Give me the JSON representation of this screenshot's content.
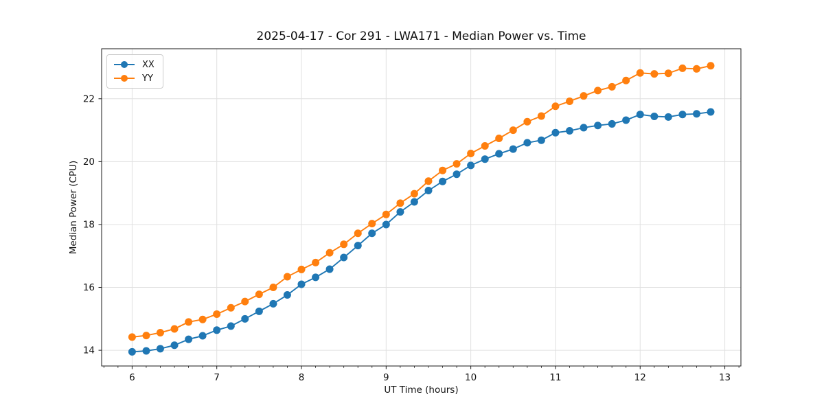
{
  "chart_data": {
    "type": "line",
    "title": "2025-04-17 - Cor 291 - LWA171 - Median Power vs. Time",
    "xlabel": "UT Time (hours)",
    "ylabel": "Median Power (CPU)",
    "xlim": [
      5.64,
      13.19
    ],
    "ylim": [
      13.5,
      23.59
    ],
    "x_ticks": [
      6,
      7,
      8,
      9,
      10,
      11,
      12,
      13
    ],
    "y_ticks": [
      14,
      16,
      18,
      20,
      22
    ],
    "x_minor_tick_step_hours": 0.1667,
    "grid": true,
    "legend_position": "upper-left",
    "x": [
      6.0,
      6.167,
      6.333,
      6.5,
      6.667,
      6.833,
      7.0,
      7.167,
      7.333,
      7.5,
      7.667,
      7.833,
      8.0,
      8.167,
      8.333,
      8.5,
      8.667,
      8.833,
      9.0,
      9.167,
      9.333,
      9.5,
      9.667,
      9.833,
      10.0,
      10.167,
      10.333,
      10.5,
      10.667,
      10.833,
      11.0,
      11.167,
      11.333,
      11.5,
      11.667,
      11.833,
      12.0,
      12.167,
      12.333,
      12.5,
      12.667,
      12.833
    ],
    "series": [
      {
        "name": "XX",
        "color": "#1f77b4",
        "values": [
          13.95,
          13.98,
          14.05,
          14.16,
          14.35,
          14.46,
          14.64,
          14.77,
          15.0,
          15.24,
          15.48,
          15.76,
          16.1,
          16.32,
          16.58,
          16.95,
          17.33,
          17.72,
          18.0,
          18.4,
          18.72,
          19.08,
          19.37,
          19.6,
          19.88,
          20.08,
          20.25,
          20.4,
          20.6,
          20.68,
          20.92,
          20.98,
          21.08,
          21.15,
          21.2,
          21.32,
          21.5,
          21.44,
          21.42,
          21.5,
          21.52,
          21.58
        ]
      },
      {
        "name": "YY",
        "color": "#ff7f0e",
        "values": [
          14.42,
          14.47,
          14.56,
          14.68,
          14.9,
          14.98,
          15.15,
          15.35,
          15.55,
          15.78,
          16.0,
          16.34,
          16.57,
          16.79,
          17.1,
          17.37,
          17.72,
          18.03,
          18.32,
          18.68,
          18.98,
          19.38,
          19.72,
          19.93,
          20.26,
          20.5,
          20.74,
          21.0,
          21.27,
          21.45,
          21.76,
          21.92,
          22.09,
          22.26,
          22.38,
          22.58,
          22.82,
          22.79,
          22.81,
          22.97,
          22.95,
          23.05
        ]
      }
    ]
  },
  "style": {
    "grid_color": "#e0e0e0",
    "spine_color": "#1a1a1a",
    "tick_color": "#1a1a1a",
    "tick_label_color": "#111111",
    "background": "#ffffff",
    "marker_radius": 5.5,
    "line_width": 1.9
  }
}
